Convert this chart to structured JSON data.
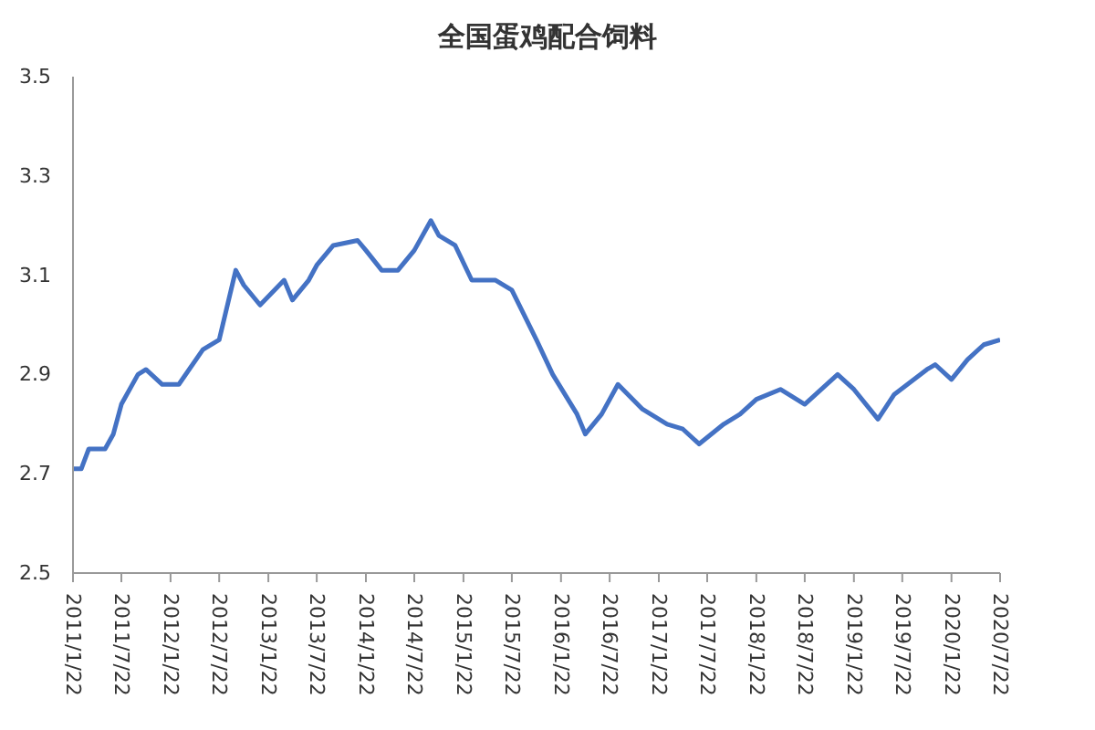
{
  "chart_data": {
    "type": "line",
    "title": "全国蛋鸡配合饲料",
    "x": [
      "2011-01-22",
      "2011-02-22",
      "2011-03-22",
      "2011-05-22",
      "2011-06-22",
      "2011-07-22",
      "2011-09-22",
      "2011-10-22",
      "2011-12-22",
      "2012-02-22",
      "2012-05-22",
      "2012-07-22",
      "2012-09-22",
      "2012-10-22",
      "2012-12-22",
      "2013-03-22",
      "2013-04-22",
      "2013-06-22",
      "2013-07-22",
      "2013-09-22",
      "2013-12-22",
      "2014-01-22",
      "2014-03-22",
      "2014-05-22",
      "2014-07-22",
      "2014-09-22",
      "2014-10-22",
      "2014-12-22",
      "2015-02-22",
      "2015-05-22",
      "2015-07-22",
      "2015-10-22",
      "2015-12-22",
      "2016-03-22",
      "2016-04-22",
      "2016-06-22",
      "2016-08-22",
      "2016-11-22",
      "2017-02-22",
      "2017-04-22",
      "2017-06-22",
      "2017-09-22",
      "2017-11-22",
      "2018-01-22",
      "2018-04-22",
      "2018-07-22",
      "2018-11-22",
      "2019-01-22",
      "2019-04-22",
      "2019-06-22",
      "2019-10-22",
      "2019-11-22",
      "2020-01-22",
      "2020-03-22",
      "2020-05-22",
      "2020-07-22"
    ],
    "series": [
      {
        "color": "#4472c4",
        "values": [
          2.71,
          2.71,
          2.75,
          2.75,
          2.78,
          2.84,
          2.9,
          2.91,
          2.88,
          2.88,
          2.95,
          2.97,
          3.11,
          3.08,
          3.04,
          3.09,
          3.05,
          3.09,
          3.12,
          3.16,
          3.17,
          3.15,
          3.11,
          3.11,
          3.15,
          3.21,
          3.18,
          3.16,
          3.09,
          3.09,
          3.07,
          2.97,
          2.9,
          2.82,
          2.78,
          2.82,
          2.88,
          2.83,
          2.8,
          2.79,
          2.76,
          2.8,
          2.82,
          2.85,
          2.87,
          2.84,
          2.9,
          2.87,
          2.81,
          2.86,
          2.91,
          2.92,
          2.89,
          2.93,
          2.96,
          2.97
        ]
      }
    ],
    "ylim": [
      2.5,
      3.5
    ],
    "yticks": [
      2.5,
      2.7,
      2.9,
      3.1,
      3.3,
      3.5
    ],
    "xlim": [
      "2011-01-22",
      "2020-07-22"
    ],
    "xticks": [
      {
        "value": "2011-01-22",
        "label": "2011/1/22"
      },
      {
        "value": "2011-07-22",
        "label": "2011/7/22"
      },
      {
        "value": "2012-01-22",
        "label": "2012/1/22"
      },
      {
        "value": "2012-07-22",
        "label": "2012/7/22"
      },
      {
        "value": "2013-01-22",
        "label": "2013/1/22"
      },
      {
        "value": "2013-07-22",
        "label": "2013/7/22"
      },
      {
        "value": "2014-01-22",
        "label": "2014/1/22"
      },
      {
        "value": "2014-07-22",
        "label": "2014/7/22"
      },
      {
        "value": "2015-01-22",
        "label": "2015/1/22"
      },
      {
        "value": "2015-07-22",
        "label": "2015/7/22"
      },
      {
        "value": "2016-01-22",
        "label": "2016/1/22"
      },
      {
        "value": "2016-07-22",
        "label": "2016/7/22"
      },
      {
        "value": "2017-01-22",
        "label": "2017/1/22"
      },
      {
        "value": "2017-07-22",
        "label": "2017/7/22"
      },
      {
        "value": "2018-01-22",
        "label": "2018/1/22"
      },
      {
        "value": "2018-07-22",
        "label": "2018/7/22"
      },
      {
        "value": "2019-01-22",
        "label": "2019/1/22"
      },
      {
        "value": "2019-07-22",
        "label": "2019/7/22"
      },
      {
        "value": "2020-01-22",
        "label": "2020/1/22"
      },
      {
        "value": "2020-07-22",
        "label": "2020/7/22"
      }
    ],
    "grid": false,
    "legend": false,
    "marker": "none",
    "line_style": "solid"
  }
}
